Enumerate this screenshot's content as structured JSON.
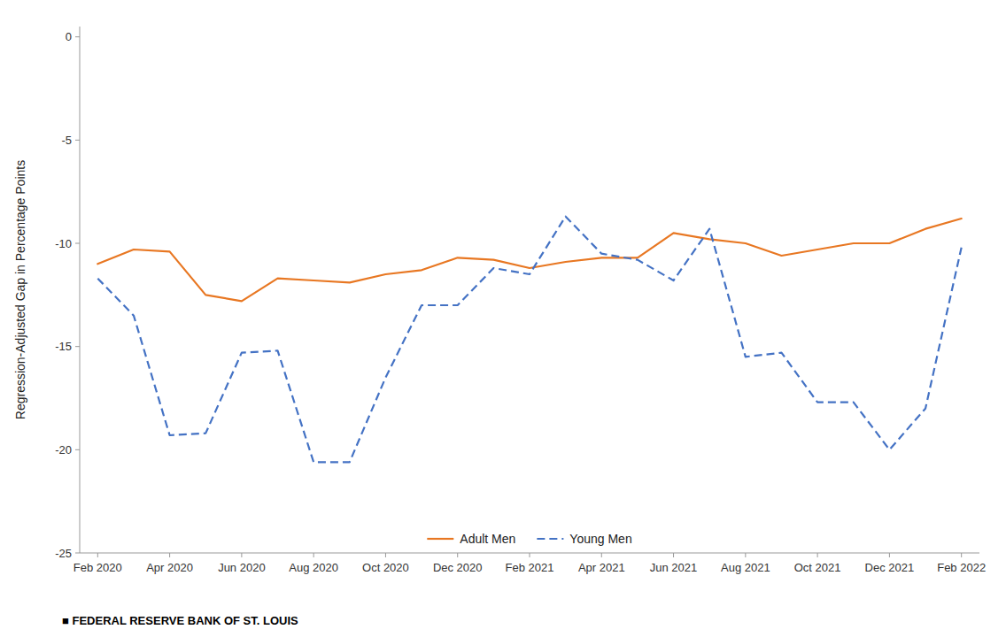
{
  "chart_data": {
    "type": "line",
    "categories": [
      "Feb 2020",
      null,
      "Apr 2020",
      null,
      "Jun 2020",
      null,
      "Aug 2020",
      null,
      "Oct 2020",
      null,
      "Dec 2020",
      null,
      "Feb 2021",
      null,
      "Apr 2021",
      null,
      "Jun 2021",
      null,
      "Aug 2021",
      null,
      "Oct 2021",
      null,
      "Dec 2021",
      null,
      "Feb 2022"
    ],
    "series": [
      {
        "name": "Adult Men",
        "color": "#E87722",
        "line_style": "solid",
        "values": [
          -11.0,
          -10.3,
          -10.4,
          -12.5,
          -12.8,
          -11.7,
          -11.8,
          -11.9,
          -11.5,
          -11.3,
          -10.7,
          -10.8,
          -11.2,
          -10.9,
          -10.7,
          -10.7,
          -9.5,
          -9.8,
          -10.0,
          -10.6,
          -10.3,
          -10.0,
          -10.0,
          -9.3,
          -8.8
        ]
      },
      {
        "name": "Young Men",
        "color": "#4472C4",
        "line_style": "dashed",
        "values": [
          -11.7,
          -13.5,
          -19.3,
          -19.2,
          -15.3,
          -15.2,
          -20.6,
          -20.6,
          -16.5,
          -13.0,
          -13.0,
          -11.2,
          -11.5,
          -8.7,
          -10.5,
          -10.8,
          -11.8,
          -9.3,
          -15.5,
          -15.3,
          -17.7,
          -17.7,
          -20.0,
          -18.0,
          -10.2
        ]
      }
    ],
    "ylim": [
      -25,
      0.5
    ],
    "yticks": [
      0,
      -5,
      -10,
      -15,
      -20,
      -25
    ],
    "ylabel": "Regression-Adjusted Gap in Percentage Points",
    "footer": "■  FEDERAL RESERVE BANK OF ST. LOUIS",
    "grid": false,
    "legend": "bottom"
  }
}
